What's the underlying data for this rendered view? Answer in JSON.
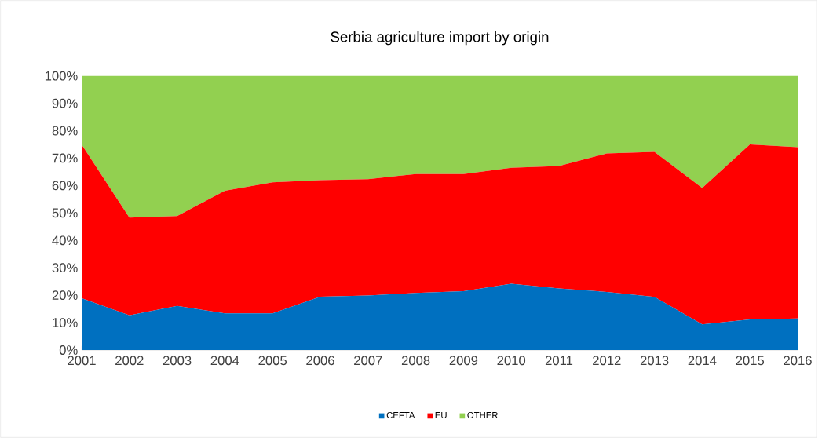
{
  "chart_data": {
    "type": "area",
    "title": "Serbia agriculture import by origin",
    "stacked": true,
    "categories": [
      "2001",
      "2002",
      "2003",
      "2004",
      "2005",
      "2006",
      "2007",
      "2008",
      "2009",
      "2010",
      "2011",
      "2012",
      "2013",
      "2014",
      "2015",
      "2016"
    ],
    "series": [
      {
        "name": "CEFTA",
        "color": "#0070c0",
        "values": [
          18.9,
          12.7,
          16.1,
          13.4,
          13.4,
          19.5,
          19.9,
          20.8,
          21.5,
          24.2,
          22.5,
          21.2,
          19.4,
          9.4,
          11.2,
          11.5
        ]
      },
      {
        "name": "EU",
        "color": "#ff0000",
        "values": [
          56.0,
          35.6,
          32.8,
          44.7,
          47.8,
          42.5,
          42.4,
          43.4,
          42.7,
          42.3,
          44.6,
          50.5,
          52.9,
          49.7,
          63.8,
          62.5
        ]
      },
      {
        "name": "OTHER",
        "color": "#92d050",
        "values": [
          25.1,
          51.7,
          51.1,
          41.9,
          38.8,
          38.0,
          37.7,
          35.8,
          35.8,
          33.5,
          32.9,
          28.3,
          27.7,
          40.9,
          25.0,
          26.0
        ]
      }
    ],
    "ylim": [
      0,
      100
    ],
    "yticks": [
      {
        "value": 0,
        "label": "0%"
      },
      {
        "value": 10,
        "label": "10%"
      },
      {
        "value": 20,
        "label": "20%"
      },
      {
        "value": 30,
        "label": "30%"
      },
      {
        "value": 40,
        "label": "40%"
      },
      {
        "value": 50,
        "label": "50%"
      },
      {
        "value": 60,
        "label": "60%"
      },
      {
        "value": 70,
        "label": "70%"
      },
      {
        "value": 80,
        "label": "80%"
      },
      {
        "value": 90,
        "label": "90%"
      },
      {
        "value": 100,
        "label": "100%"
      }
    ],
    "legend": "bottom",
    "grid": false
  }
}
